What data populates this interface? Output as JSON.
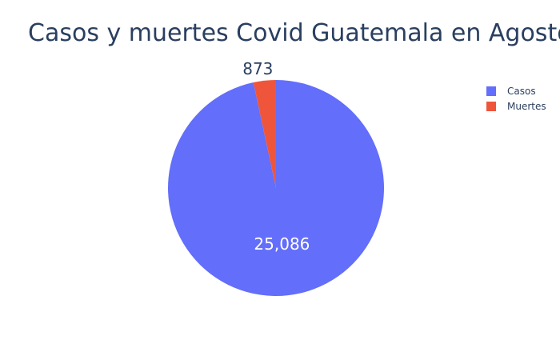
{
  "chart_data": {
    "type": "pie",
    "title": "Casos y muertes Covid Guatemala en Agosto",
    "categories": [
      "Casos",
      "Muertes"
    ],
    "values": [
      25086,
      873
    ],
    "value_labels": [
      "25,086",
      "873"
    ],
    "colors": [
      "#636efa",
      "#ef553b"
    ],
    "legend_placement": "top-right",
    "sort": "descending",
    "direction": "clockwise"
  }
}
